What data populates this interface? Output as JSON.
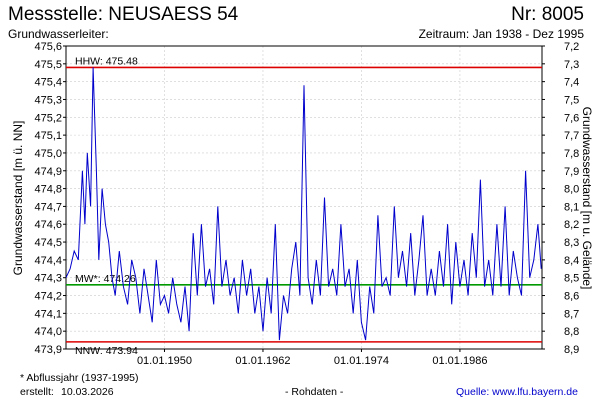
{
  "header": {
    "title": "Messstelle: NEUSAESS 54",
    "number": "Nr: 8005",
    "aquifer": "Grundwasserleiter:",
    "period": "Zeitraum: Jan 1938 - Dez 1995"
  },
  "footer": {
    "footnote": "* Abflussjahr (1937-1995)",
    "created_label": "erstellt:",
    "created_date": "10.03.2026",
    "rawdata": "- Rohdaten -",
    "source": "Quelle: www.lfu.bayern.de"
  },
  "colors": {
    "series": "#0000cc",
    "extremes": "#dd0000",
    "mean": "#009900",
    "grid": "#cccccc"
  },
  "chart_data": {
    "type": "line",
    "ylabel_left": "Grundwasserstand [m ü. NN]",
    "ylabel_right": "Grundwasserstand [m u. Gelände]",
    "ylim": [
      473.9,
      475.6
    ],
    "yticks_left": [
      "475,6",
      "475,5",
      "475,4",
      "475,3",
      "475,2",
      "475,1",
      "475,0",
      "474,9",
      "474,8",
      "474,7",
      "474,6",
      "474,5",
      "474,4",
      "474,3",
      "474,2",
      "474,1",
      "474,0",
      "473,9"
    ],
    "yticks_right": [
      "7,2",
      "7,3",
      "7,4",
      "7,5",
      "7,6",
      "7,7",
      "7,8",
      "7,9",
      "8,0",
      "8,1",
      "8,2",
      "8,3",
      "8,4",
      "8,5",
      "8,6",
      "8,7",
      "8,8",
      "8,9"
    ],
    "xlim": [
      "1938-01",
      "1995-12"
    ],
    "xticks": [
      {
        "date": "1950-01-01",
        "label": "01.01.1950"
      },
      {
        "date": "1962-01-01",
        "label": "01.01.1962"
      },
      {
        "date": "1974-01-01",
        "label": "01.01.1974"
      },
      {
        "date": "1986-01-01",
        "label": "01.01.1986"
      }
    ],
    "grid": true,
    "reference_lines": [
      {
        "label": "HHW: 475.48",
        "value": 475.48,
        "kind": "extreme"
      },
      {
        "label": "MW*: 474.26",
        "value": 474.26,
        "kind": "mean"
      },
      {
        "label": "NNW: 473.94",
        "value": 473.94,
        "kind": "extreme"
      }
    ],
    "series": [
      {
        "x": [
          1938.0,
          1938.5,
          1939.0,
          1939.5,
          1940.0,
          1940.3,
          1940.6,
          1941.0,
          1941.3,
          1941.7,
          1942.0,
          1942.4,
          1942.8,
          1943.2,
          1943.6,
          1944.0,
          1944.5,
          1945.0,
          1945.5,
          1946.0,
          1946.5,
          1947.0,
          1947.5,
          1948.0,
          1948.5,
          1949.0,
          1949.5,
          1950.0,
          1950.5,
          1951.0,
          1951.5,
          1952.0,
          1952.5,
          1953.0,
          1953.5,
          1954.0,
          1954.5,
          1955.0,
          1955.5,
          1956.0,
          1956.5,
          1957.0,
          1957.5,
          1958.0,
          1958.5,
          1959.0,
          1959.5,
          1960.0,
          1960.5,
          1961.0,
          1961.5,
          1962.0,
          1962.5,
          1963.0,
          1963.5,
          1964.0,
          1964.5,
          1965.0,
          1965.5,
          1966.0,
          1966.5,
          1967.0,
          1967.5,
          1968.0,
          1968.5,
          1969.0,
          1969.5,
          1970.0,
          1970.5,
          1971.0,
          1971.5,
          1972.0,
          1972.5,
          1973.0,
          1973.5,
          1974.0,
          1974.5,
          1975.0,
          1975.5,
          1976.0,
          1976.5,
          1977.0,
          1977.5,
          1978.0,
          1978.5,
          1979.0,
          1979.5,
          1980.0,
          1980.5,
          1981.0,
          1981.5,
          1982.0,
          1982.5,
          1983.0,
          1983.5,
          1984.0,
          1984.5,
          1985.0,
          1985.5,
          1986.0,
          1986.5,
          1987.0,
          1987.5,
          1988.0,
          1988.5,
          1989.0,
          1989.5,
          1990.0,
          1990.5,
          1991.0,
          1991.5,
          1992.0,
          1992.5,
          1993.0,
          1993.5,
          1994.0,
          1994.5,
          1995.0,
          1995.5,
          1995.9
        ],
        "y": [
          474.3,
          474.35,
          474.45,
          474.4,
          474.9,
          474.6,
          475.0,
          474.7,
          475.48,
          474.9,
          474.4,
          474.8,
          474.6,
          474.5,
          474.3,
          474.2,
          474.45,
          474.25,
          474.15,
          474.4,
          474.3,
          474.1,
          474.35,
          474.2,
          474.05,
          474.4,
          474.15,
          474.2,
          474.1,
          474.3,
          474.15,
          474.05,
          474.25,
          474.0,
          474.55,
          474.2,
          474.6,
          474.25,
          474.35,
          474.15,
          474.7,
          474.25,
          474.4,
          474.2,
          474.3,
          474.1,
          474.4,
          474.2,
          474.35,
          474.1,
          474.25,
          474.0,
          474.3,
          474.1,
          474.6,
          473.95,
          474.2,
          474.1,
          474.35,
          474.5,
          474.2,
          475.38,
          474.3,
          474.15,
          474.4,
          474.2,
          474.75,
          474.25,
          474.35,
          474.2,
          474.6,
          474.25,
          474.35,
          474.1,
          474.4,
          474.05,
          473.95,
          474.25,
          474.1,
          474.65,
          474.25,
          474.3,
          474.2,
          474.7,
          474.3,
          474.45,
          474.25,
          474.55,
          474.2,
          474.4,
          474.65,
          474.2,
          474.35,
          474.2,
          474.45,
          474.25,
          474.6,
          474.15,
          474.5,
          474.25,
          474.4,
          474.2,
          474.55,
          474.3,
          474.85,
          474.25,
          474.4,
          474.2,
          474.6,
          474.25,
          474.7,
          474.2,
          474.45,
          474.3,
          474.2,
          474.9,
          474.3,
          474.4,
          474.6,
          474.35
        ]
      }
    ]
  }
}
